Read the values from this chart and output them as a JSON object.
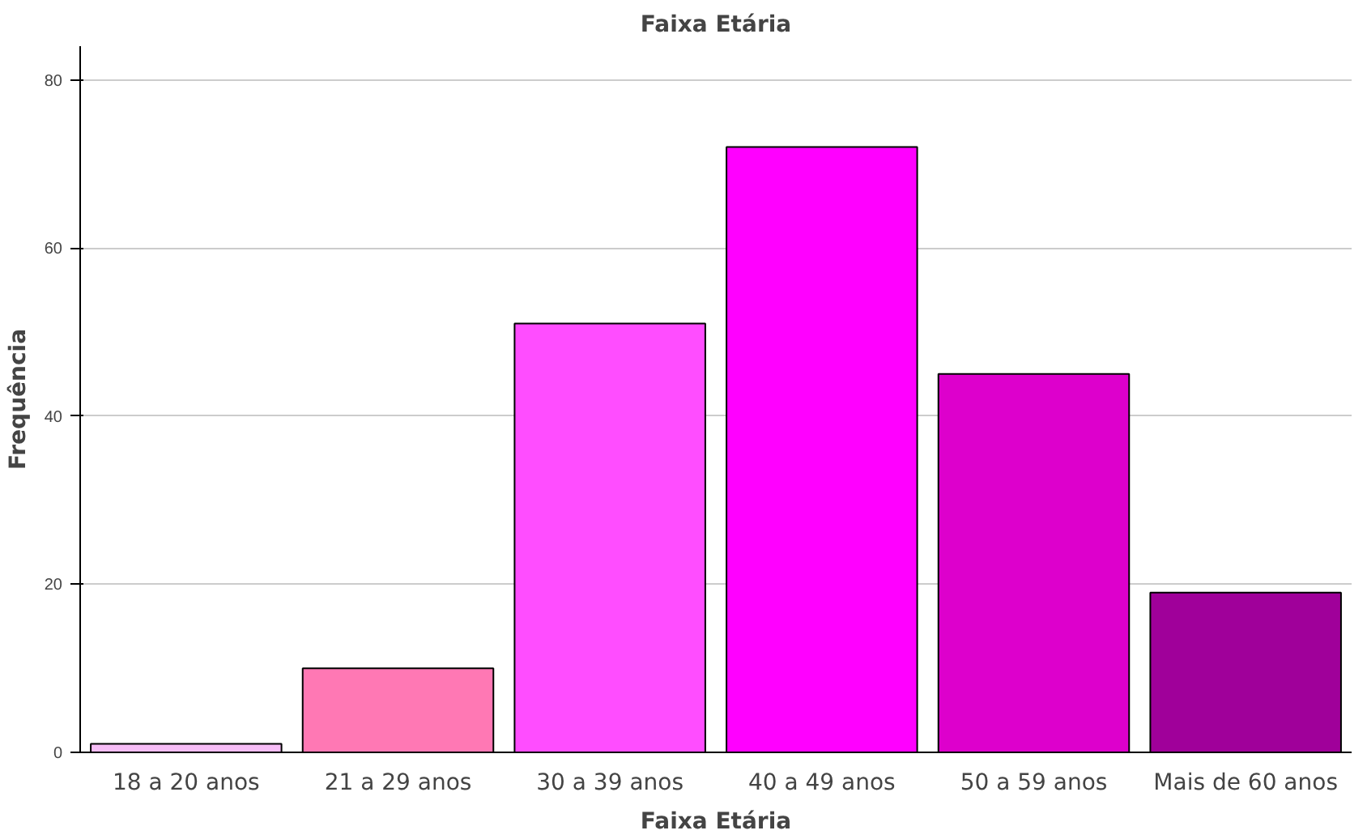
{
  "chart_data": {
    "type": "bar",
    "title": "Faixa Etária",
    "xlabel": "Faixa Etária",
    "ylabel": "Frequência",
    "categories": [
      "18 a 20 anos",
      "21 a 29 anos",
      "30 a 39 anos",
      "40 a 49 anos",
      "50 a 59 anos",
      "Mais de 60 anos"
    ],
    "values": [
      1,
      10,
      51,
      72,
      45,
      19
    ],
    "colors": [
      "#f7bdf7",
      "#ff78b4",
      "#ff4dff",
      "#ff00ff",
      "#dd00cc",
      "#a0009a"
    ],
    "ylim": [
      0,
      84
    ],
    "yticks": [
      0,
      20,
      40,
      60,
      80
    ],
    "grid": "y"
  }
}
